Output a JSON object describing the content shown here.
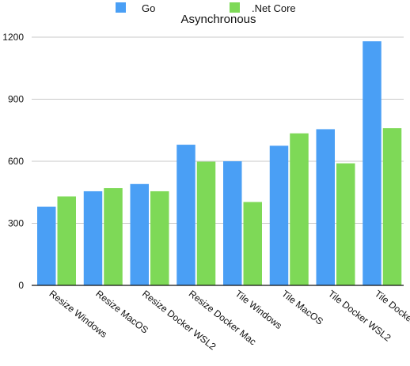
{
  "chart_data": {
    "type": "bar",
    "title": "Asynchronous",
    "categories": [
      "Resize Windows",
      "Resize MacOS",
      "Resize Docker WSL2",
      "Resize Docker Mac",
      "Tile Windows",
      "Tile MacOS",
      "Tile Docker WSL2",
      "Tile Docker Mac"
    ],
    "series": [
      {
        "name": "Go",
        "color": "#4a9ff5",
        "values": [
          380,
          455,
          490,
          680,
          600,
          675,
          755,
          1180
        ]
      },
      {
        "name": ".Net Core",
        "color": "#7ed957",
        "values": [
          430,
          470,
          455,
          598,
          403,
          735,
          590,
          760
        ]
      }
    ],
    "ylim": [
      0,
      1200
    ],
    "yticks": [
      0,
      300,
      600,
      900,
      1200
    ],
    "ytick_labels": [
      "0",
      "300",
      "600",
      "900",
      "1200"
    ],
    "grid": true,
    "legend_position": "top"
  }
}
